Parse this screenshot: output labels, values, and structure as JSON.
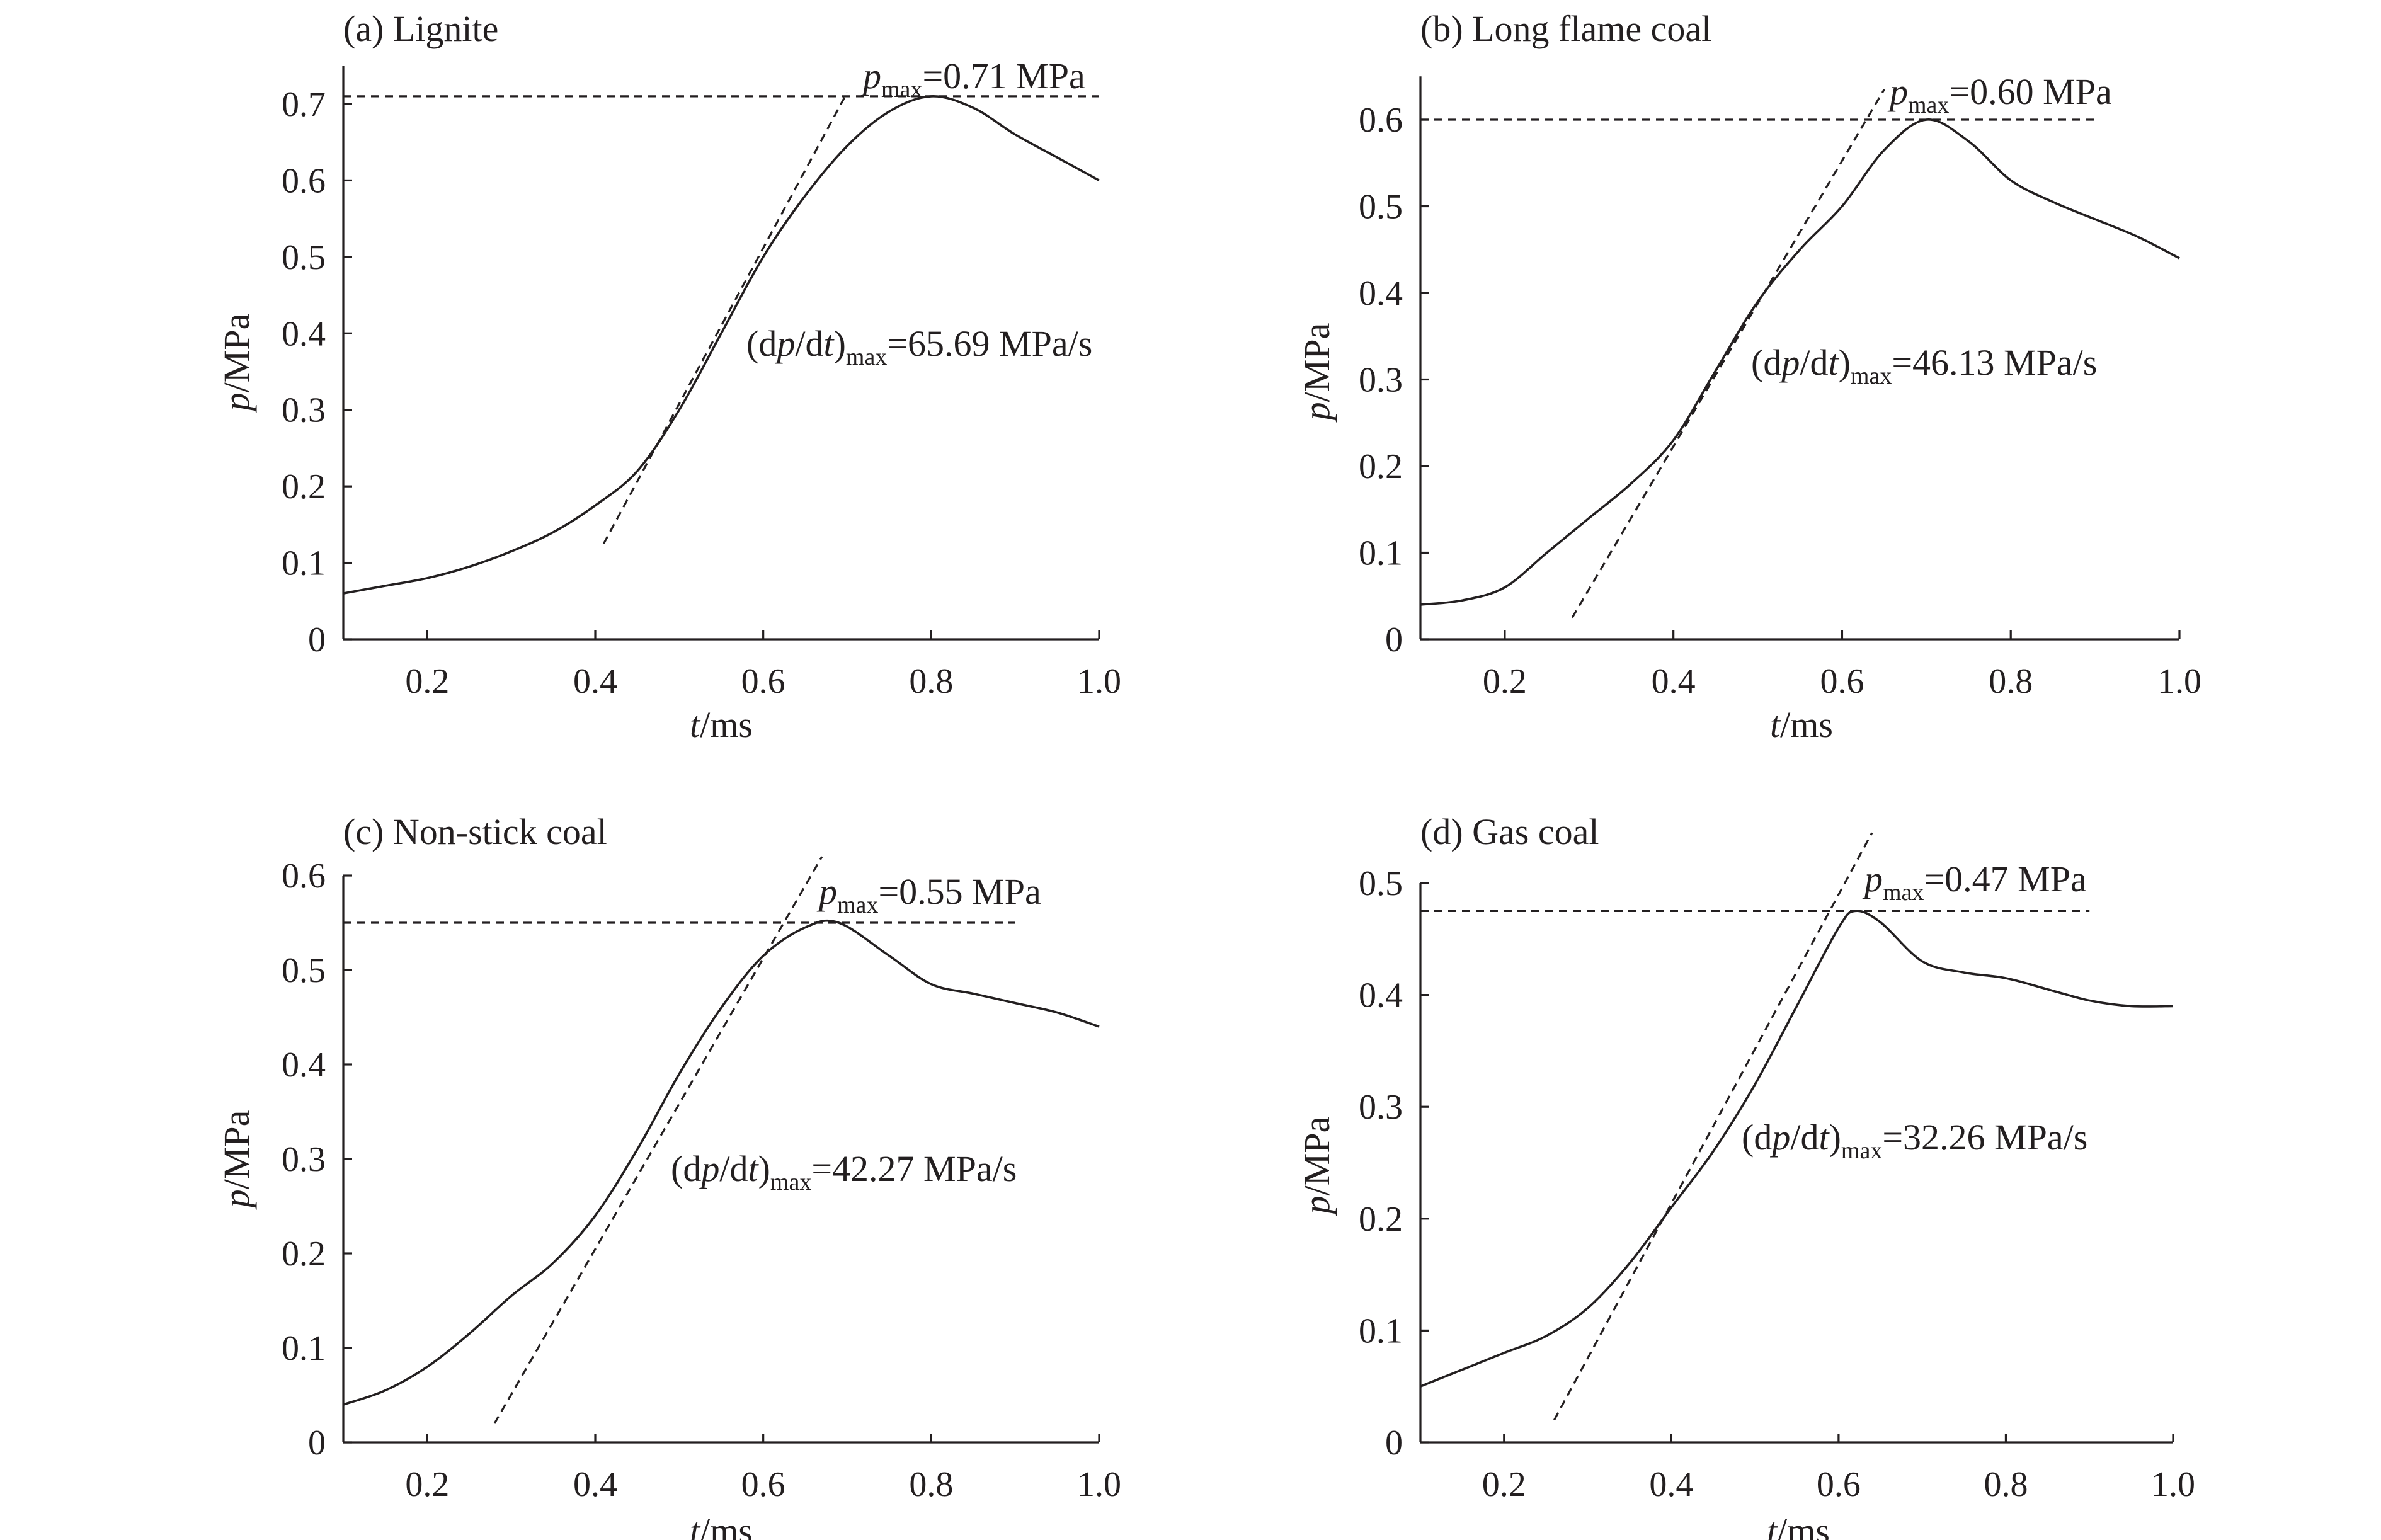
{
  "chart_data": [
    {
      "type": "line",
      "title": "(a) Lignite",
      "xlabel": "t/ms",
      "ylabel": "p/MPa",
      "xlim": [
        0.1,
        1.0
      ],
      "ylim": [
        0,
        0.75
      ],
      "xticks": [
        0.2,
        0.4,
        0.6,
        0.8,
        1.0
      ],
      "xtick_labels": [
        "0.2",
        "0.4",
        "0.6",
        "0.8",
        "1.0"
      ],
      "yticks": [
        0,
        0.1,
        0.2,
        0.3,
        0.4,
        0.5,
        0.6,
        0.7
      ],
      "ytick_labels": [
        "0",
        "0.1",
        "0.2",
        "0.3",
        "0.4",
        "0.5",
        "0.6",
        "0.7"
      ],
      "series": [
        {
          "x": [
            0.1,
            0.15,
            0.2,
            0.25,
            0.3,
            0.35,
            0.4,
            0.45,
            0.5,
            0.55,
            0.6,
            0.65,
            0.7,
            0.75,
            0.8,
            0.85,
            0.9,
            0.95,
            1.0
          ],
          "y": [
            0.06,
            0.07,
            0.08,
            0.095,
            0.115,
            0.14,
            0.175,
            0.22,
            0.3,
            0.4,
            0.5,
            0.58,
            0.645,
            0.69,
            0.71,
            0.695,
            0.66,
            0.63,
            0.6
          ]
        }
      ],
      "pmax": {
        "value": 0.71,
        "x_start": 0.1,
        "x_end": 1.0,
        "label_prefix": "p",
        "label_sub": "max",
        "label_value": "=0.71 MPa"
      },
      "tangent": {
        "x1": 0.41,
        "y1": 0.125,
        "x2": 0.7,
        "y2": 0.715
      },
      "rate": {
        "label_prefix": "(d",
        "label_p": "p",
        "label_mid": "/d",
        "label_t": "t",
        "label_close": ")",
        "label_sub": "max",
        "label_value": "=65.69 MPa/s"
      }
    },
    {
      "type": "line",
      "title": "(b) Long flame coal",
      "xlabel": "t/ms",
      "ylabel": "p/MPa",
      "xlim": [
        0.1,
        1.0
      ],
      "ylim": [
        0,
        0.65
      ],
      "xticks": [
        0.2,
        0.4,
        0.6,
        0.8,
        1.0
      ],
      "xtick_labels": [
        "0.2",
        "0.4",
        "0.6",
        "0.8",
        "1.0"
      ],
      "yticks": [
        0,
        0.1,
        0.2,
        0.3,
        0.4,
        0.5,
        0.6
      ],
      "ytick_labels": [
        "0",
        "0.1",
        "0.2",
        "0.3",
        "0.4",
        "0.5",
        "0.6"
      ],
      "series": [
        {
          "x": [
            0.1,
            0.15,
            0.2,
            0.25,
            0.3,
            0.35,
            0.4,
            0.45,
            0.5,
            0.55,
            0.6,
            0.65,
            0.7,
            0.75,
            0.8,
            0.85,
            0.9,
            0.95,
            1.0
          ],
          "y": [
            0.04,
            0.045,
            0.06,
            0.1,
            0.14,
            0.18,
            0.23,
            0.31,
            0.39,
            0.45,
            0.5,
            0.565,
            0.6,
            0.575,
            0.53,
            0.505,
            0.485,
            0.465,
            0.44
          ]
        }
      ],
      "pmax": {
        "value": 0.6,
        "x_start": 0.1,
        "x_end": 0.9,
        "label_prefix": "p",
        "label_sub": "max",
        "label_value": "=0.60 MPa"
      },
      "tangent": {
        "x1": 0.28,
        "y1": 0.025,
        "x2": 0.65,
        "y2": 0.635
      },
      "rate": {
        "label_prefix": "(d",
        "label_p": "p",
        "label_mid": "/d",
        "label_t": "t",
        "label_close": ")",
        "label_sub": "max",
        "label_value": "=46.13 MPa/s"
      }
    },
    {
      "type": "line",
      "title": "(c) Non-stick coal",
      "xlabel": "t/ms",
      "ylabel": "p/MPa",
      "xlim": [
        0.1,
        1.0
      ],
      "ylim": [
        0,
        0.6
      ],
      "xticks": [
        0.2,
        0.4,
        0.6,
        0.8,
        1.0
      ],
      "xtick_labels": [
        "0.2",
        "0.4",
        "0.6",
        "0.8",
        "1.0"
      ],
      "yticks": [
        0,
        0.1,
        0.2,
        0.3,
        0.4,
        0.5,
        0.6
      ],
      "ytick_labels": [
        "0",
        "0.1",
        "0.2",
        "0.3",
        "0.4",
        "0.5",
        "0.6"
      ],
      "series": [
        {
          "x": [
            0.1,
            0.15,
            0.2,
            0.25,
            0.3,
            0.35,
            0.4,
            0.45,
            0.5,
            0.55,
            0.6,
            0.65,
            0.69,
            0.75,
            0.8,
            0.85,
            0.9,
            0.95,
            1.0
          ],
          "y": [
            0.04,
            0.055,
            0.08,
            0.115,
            0.155,
            0.19,
            0.24,
            0.31,
            0.39,
            0.46,
            0.515,
            0.545,
            0.55,
            0.515,
            0.485,
            0.475,
            0.465,
            0.455,
            0.44
          ]
        }
      ],
      "pmax": {
        "value": 0.55,
        "x_start": 0.1,
        "x_end": 0.9,
        "label_prefix": "p",
        "label_sub": "max",
        "label_value": "=0.55 MPa"
      },
      "tangent": {
        "x1": 0.28,
        "y1": 0.02,
        "x2": 0.67,
        "y2": 0.62
      },
      "rate": {
        "label_prefix": "(d",
        "label_p": "p",
        "label_mid": "/d",
        "label_t": "t",
        "label_close": ")",
        "label_sub": "max",
        "label_value": "=42.27  MPa/s"
      }
    },
    {
      "type": "line",
      "title": "(d) Gas coal",
      "xlabel": "t/ms",
      "ylabel": "p/MPa",
      "xlim": [
        0.1,
        1.0
      ],
      "ylim": [
        0,
        0.5
      ],
      "xticks": [
        0.2,
        0.4,
        0.6,
        0.8,
        1.0
      ],
      "xtick_labels": [
        "0.2",
        "0.4",
        "0.6",
        "0.8",
        "1.0"
      ],
      "yticks": [
        0,
        0.1,
        0.2,
        0.3,
        0.4,
        0.5
      ],
      "ytick_labels": [
        "0",
        "0.1",
        "0.2",
        "0.3",
        "0.4",
        "0.5"
      ],
      "series": [
        {
          "x": [
            0.1,
            0.15,
            0.2,
            0.25,
            0.3,
            0.35,
            0.4,
            0.45,
            0.5,
            0.55,
            0.6,
            0.62,
            0.65,
            0.7,
            0.75,
            0.8,
            0.85,
            0.9,
            0.95,
            1.0
          ],
          "y": [
            0.05,
            0.065,
            0.08,
            0.095,
            0.12,
            0.16,
            0.21,
            0.26,
            0.32,
            0.39,
            0.46,
            0.475,
            0.465,
            0.43,
            0.42,
            0.415,
            0.405,
            0.395,
            0.39,
            0.39
          ]
        }
      ],
      "pmax": {
        "value": 0.475,
        "x_start": 0.1,
        "x_end": 0.9,
        "label_prefix": "p",
        "label_sub": "max",
        "label_value": "=0.47 MPa"
      },
      "tangent": {
        "x1": 0.26,
        "y1": 0.02,
        "x2": 0.64,
        "y2": 0.545
      },
      "rate": {
        "label_prefix": "(d",
        "label_p": "p",
        "label_mid": "/d",
        "label_t": "t",
        "label_close": ")",
        "label_sub": "max",
        "label_value": "=32.26  MPa/s"
      }
    }
  ]
}
